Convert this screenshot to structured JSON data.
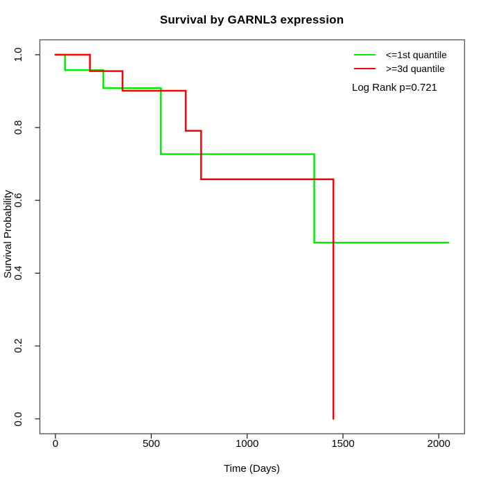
{
  "chart_data": {
    "type": "line",
    "subtype": "kaplan-meier-step",
    "title": "Survival by GARNL3 expression",
    "xlabel": "Time (Days)",
    "ylabel": "Survival Probability",
    "xlim": [
      -81,
      2134
    ],
    "ylim": [
      -0.041,
      1.041
    ],
    "xticks": [
      "0",
      "500",
      "1000",
      "1500",
      "2000"
    ],
    "yticks": [
      "0.0",
      "0.2",
      "0.4",
      "0.6",
      "0.8",
      "1.0"
    ],
    "grid": false,
    "legend_position": "top-right",
    "annotation": "Log Rank p=0.721",
    "box_color": "#595959",
    "tick_color": "#333333",
    "series": [
      {
        "name": "<=1st quantile",
        "color": "#00ee00",
        "x": [
          0,
          50,
          250,
          550,
          1350,
          2050
        ],
        "y": [
          1.0,
          0.958,
          0.908,
          0.727,
          0.484,
          0.484
        ]
      },
      {
        "name": ">=3d quantile",
        "color": "#ff0000",
        "x": [
          0,
          180,
          350,
          680,
          760,
          1450
        ],
        "y": [
          1.0,
          0.955,
          0.901,
          0.791,
          0.658,
          0.0
        ]
      }
    ]
  }
}
